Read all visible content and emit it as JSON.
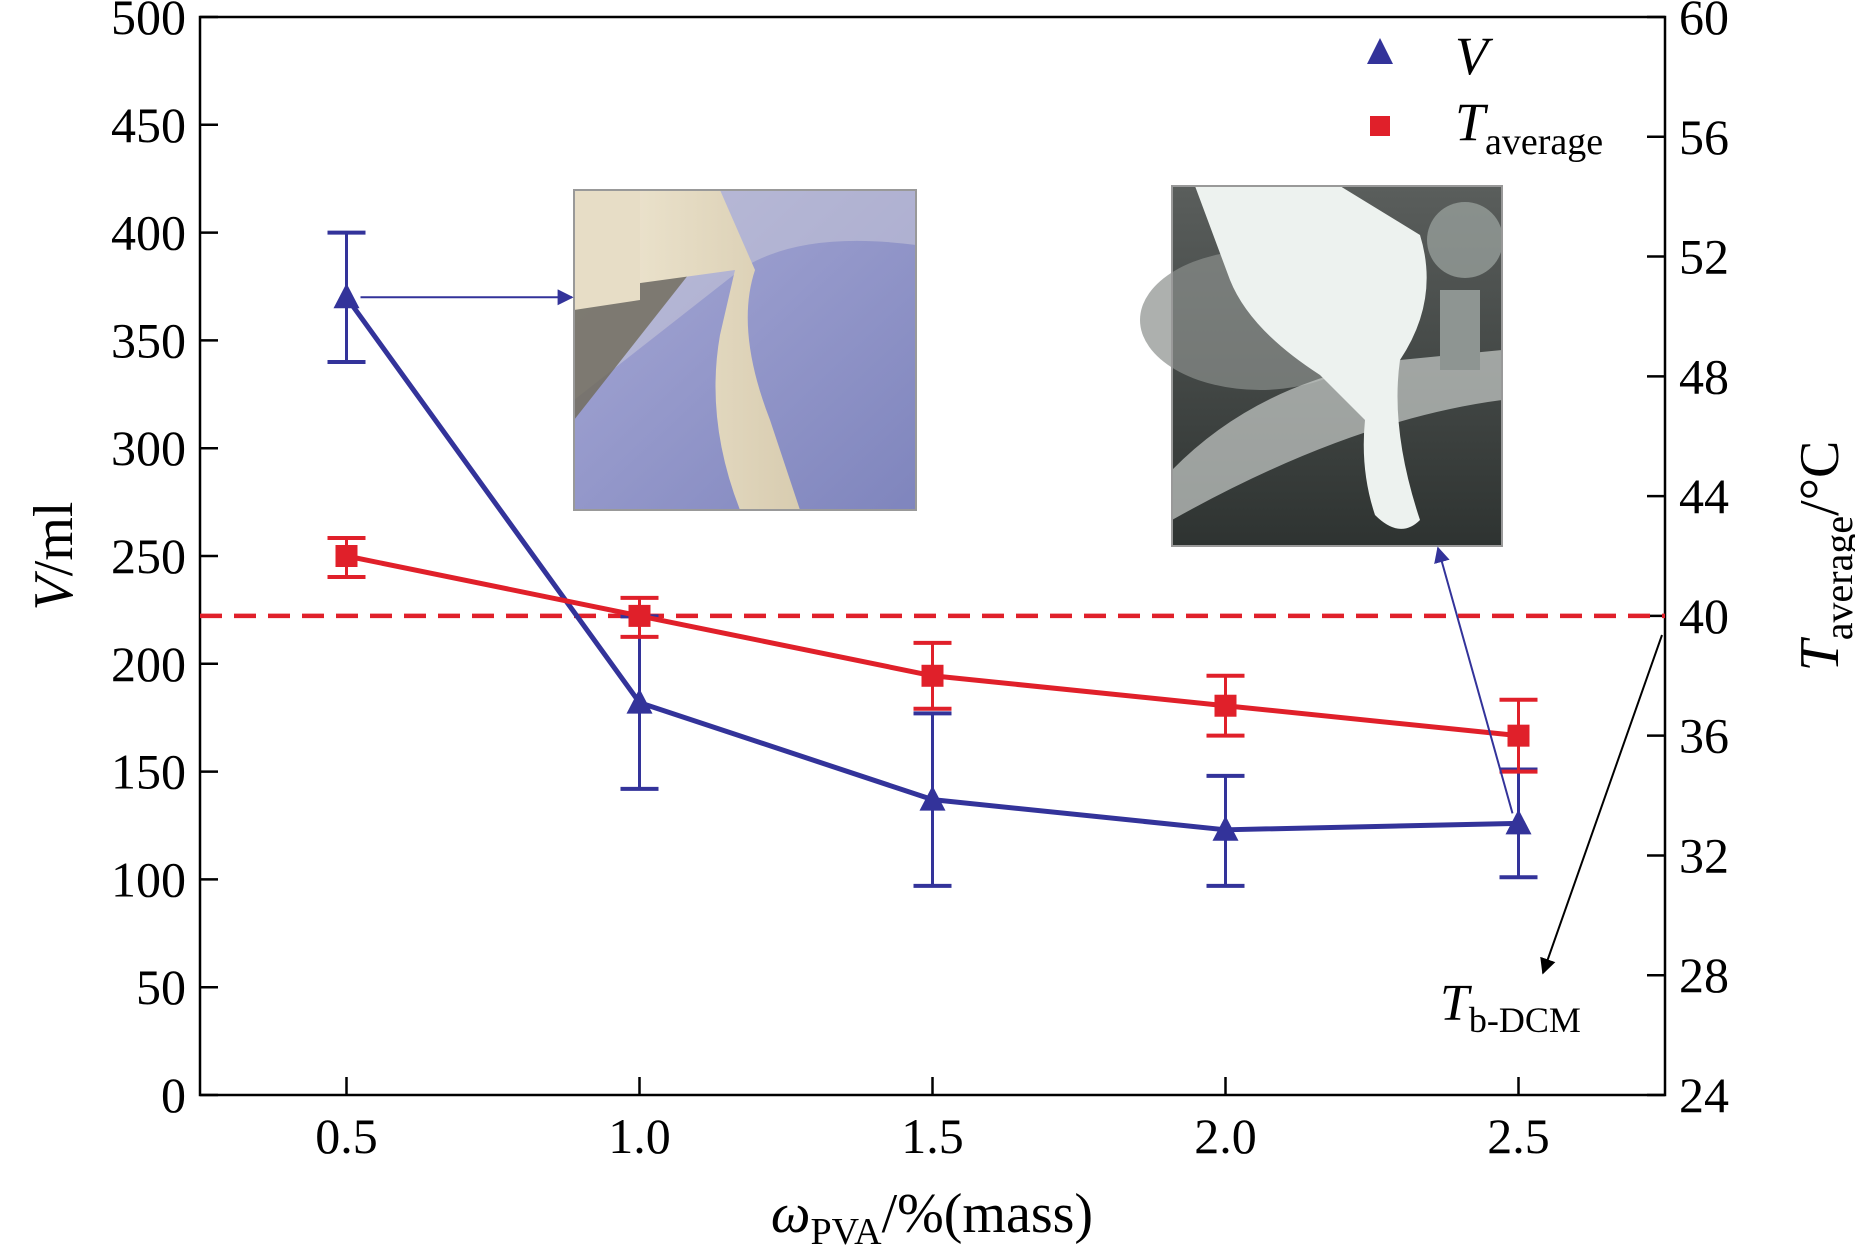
{
  "chart_data": {
    "type": "line",
    "x": [
      0.5,
      1.0,
      1.5,
      2.0,
      2.5
    ],
    "x_tick_labels": [
      "0.5",
      "1.0",
      "1.5",
      "2.0",
      "2.5"
    ],
    "xlim": [
      0.25,
      2.75
    ],
    "xlabel": {
      "main": "ω",
      "sub": "PVA",
      "rest": "/%(mass)"
    },
    "y_left": {
      "label": {
        "italic": "V",
        "rest": "/ml"
      },
      "ylim": [
        0,
        500
      ],
      "ticks": [
        "0",
        "50",
        "100",
        "150",
        "200",
        "250",
        "300",
        "350",
        "400",
        "450",
        "500"
      ]
    },
    "y_right": {
      "label": {
        "italic": "T",
        "sub": "average",
        "rest": "/°C"
      },
      "ylim": [
        24,
        60
      ],
      "ticks": [
        "24",
        "28",
        "32",
        "36",
        "40",
        "44",
        "48",
        "52",
        "56",
        "60"
      ]
    },
    "series": [
      {
        "name": "V",
        "axis": "left",
        "color": "#33339a",
        "marker": "triangle",
        "values": [
          370,
          182,
          137,
          123,
          126
        ],
        "error": [
          [
            340,
            400
          ],
          [
            142,
            222
          ],
          [
            97,
            177
          ],
          [
            97,
            148
          ],
          [
            101,
            151
          ]
        ]
      },
      {
        "name": "average",
        "name_prefix": "T",
        "axis": "right",
        "color": "#e0202a",
        "marker": "square",
        "values": [
          42.0,
          40.0,
          38.0,
          37.0,
          36.0
        ],
        "error": [
          [
            41.3,
            42.6
          ],
          [
            39.3,
            40.6
          ],
          [
            36.9,
            39.1
          ],
          [
            36.0,
            38.0
          ],
          [
            34.8,
            37.2
          ]
        ]
      }
    ],
    "reference_line": {
      "axis": "right",
      "value": 40,
      "color": "#e0202a",
      "style": "dashed"
    },
    "annotation": {
      "main": "T",
      "sub": "b-DCM"
    },
    "legend": {
      "position": "top-right"
    },
    "insets": [
      "photo-poured-suspension",
      "photo-solidified-gel"
    ],
    "grid": false
  }
}
